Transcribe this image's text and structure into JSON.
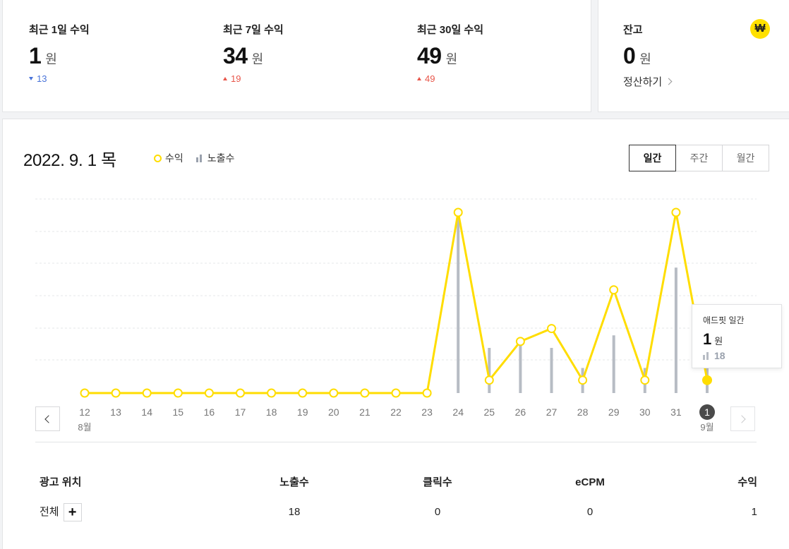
{
  "stats": [
    {
      "label": "최근 1일 수익",
      "value": "1",
      "unit": "원",
      "change": "13",
      "direction": "down"
    },
    {
      "label": "최근 7일 수익",
      "value": "34",
      "unit": "원",
      "change": "19",
      "direction": "up"
    },
    {
      "label": "최근 30일 수익",
      "value": "49",
      "unit": "원",
      "change": "49",
      "direction": "up"
    }
  ],
  "balance": {
    "label": "잔고",
    "value": "0",
    "unit": "원",
    "settle_label": "정산하기",
    "icon": "won-coin-icon",
    "icon_glyph": "₩"
  },
  "main": {
    "date_title": "2022. 9. 1 목",
    "legend": {
      "revenue": "수익",
      "impressions": "노출수"
    },
    "tabs": [
      {
        "label": "일간",
        "active": true
      },
      {
        "label": "주간",
        "active": false
      },
      {
        "label": "월간",
        "active": false
      }
    ]
  },
  "chart_data": {
    "type": "line",
    "x": [
      "12",
      "13",
      "14",
      "15",
      "16",
      "17",
      "18",
      "19",
      "20",
      "21",
      "22",
      "23",
      "24",
      "25",
      "26",
      "27",
      "28",
      "29",
      "30",
      "31",
      "1"
    ],
    "month_labels": {
      "12": "8월",
      "1": "9월"
    },
    "selected_x": "1",
    "series": [
      {
        "name": "수익",
        "type": "line",
        "color": "#ffdd00",
        "values": [
          0,
          0,
          0,
          0,
          0,
          0,
          0,
          0,
          0,
          0,
          0,
          0,
          14,
          1,
          4,
          5,
          1,
          8,
          1,
          14,
          1
        ]
      },
      {
        "name": "노출수",
        "type": "bar",
        "color": "#b7bcc4",
        "values": [
          0,
          0,
          0,
          0,
          0,
          0,
          0,
          0,
          0,
          0,
          0,
          0,
          72,
          18,
          22,
          18,
          10,
          23,
          10,
          50,
          18
        ]
      }
    ],
    "grid": true
  },
  "tooltip": {
    "title": "애드핏 일간",
    "value": "1",
    "unit": "원",
    "impressions": "18"
  },
  "table": {
    "headers": [
      "광고 위치",
      "노출수",
      "클릭수",
      "eCPM",
      "수익"
    ],
    "rows": [
      {
        "position": "전체",
        "expand_glyph": "+",
        "impressions": "18",
        "clicks": "0",
        "ecpm": "0",
        "revenue": "1"
      }
    ]
  }
}
